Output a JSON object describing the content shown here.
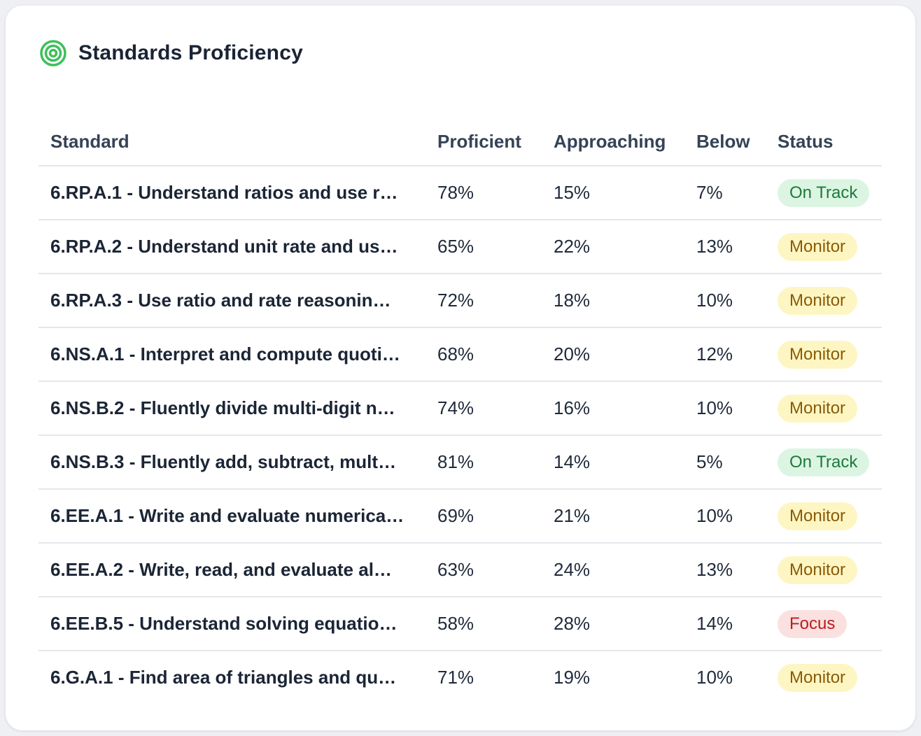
{
  "title": "Standards Proficiency",
  "icon": "target-icon",
  "colors": {
    "accent": "#3fbf5a",
    "on_track_bg": "#dcf5e3",
    "on_track_text": "#1d7a3a",
    "monitor_bg": "#fdf6c3",
    "monitor_text": "#8a5a06",
    "focus_bg": "#fbe0e0",
    "focus_text": "#bb1c1c"
  },
  "columns": [
    "Standard",
    "Proficient",
    "Approaching",
    "Below",
    "Status"
  ],
  "rows": [
    {
      "standard": "6.RP.A.1 - Understand ratios and use r…",
      "proficient": "78%",
      "approaching": "15%",
      "below": "7%",
      "status": "On Track",
      "status_key": "on-track"
    },
    {
      "standard": "6.RP.A.2 - Understand unit rate and us…",
      "proficient": "65%",
      "approaching": "22%",
      "below": "13%",
      "status": "Monitor",
      "status_key": "monitor"
    },
    {
      "standard": "6.RP.A.3 - Use ratio and rate reasonin…",
      "proficient": "72%",
      "approaching": "18%",
      "below": "10%",
      "status": "Monitor",
      "status_key": "monitor"
    },
    {
      "standard": "6.NS.A.1 - Interpret and compute quoti…",
      "proficient": "68%",
      "approaching": "20%",
      "below": "12%",
      "status": "Monitor",
      "status_key": "monitor"
    },
    {
      "standard": "6.NS.B.2 - Fluently divide multi-digit n…",
      "proficient": "74%",
      "approaching": "16%",
      "below": "10%",
      "status": "Monitor",
      "status_key": "monitor"
    },
    {
      "standard": "6.NS.B.3 - Fluently add, subtract, mult…",
      "proficient": "81%",
      "approaching": "14%",
      "below": "5%",
      "status": "On Track",
      "status_key": "on-track"
    },
    {
      "standard": "6.EE.A.1 - Write and evaluate numerica…",
      "proficient": "69%",
      "approaching": "21%",
      "below": "10%",
      "status": "Monitor",
      "status_key": "monitor"
    },
    {
      "standard": "6.EE.A.2 - Write, read, and evaluate al…",
      "proficient": "63%",
      "approaching": "24%",
      "below": "13%",
      "status": "Monitor",
      "status_key": "monitor"
    },
    {
      "standard": "6.EE.B.5 - Understand solving equatio…",
      "proficient": "58%",
      "approaching": "28%",
      "below": "14%",
      "status": "Focus",
      "status_key": "focus"
    },
    {
      "standard": "6.G.A.1 - Find area of triangles and qu…",
      "proficient": "71%",
      "approaching": "19%",
      "below": "10%",
      "status": "Monitor",
      "status_key": "monitor"
    }
  ]
}
